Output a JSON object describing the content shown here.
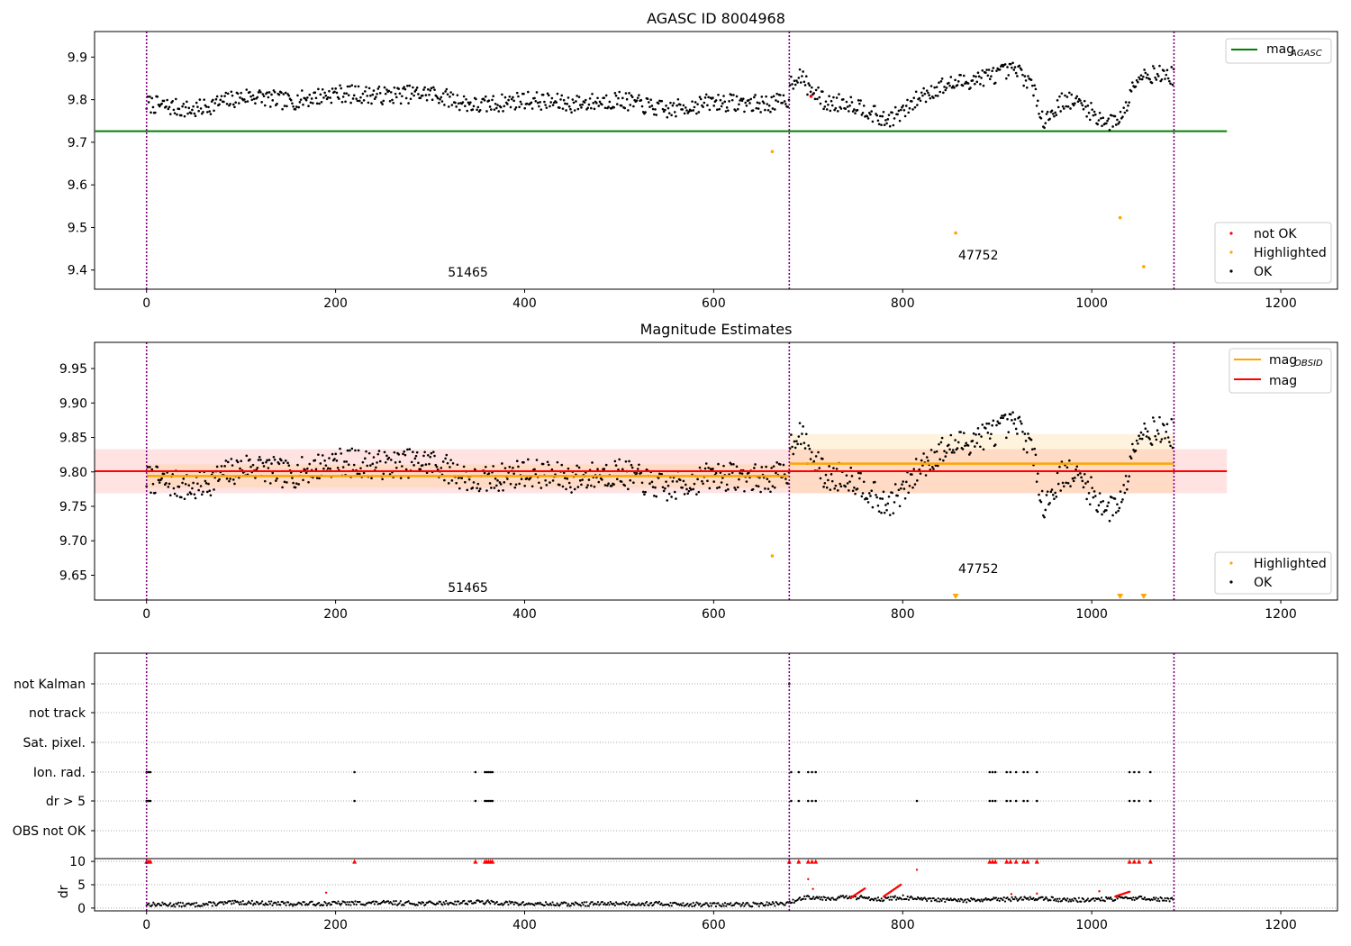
{
  "chart_data": [
    {
      "type": "scatter",
      "title": "AGASC ID 8004968",
      "xlim": [
        -55,
        1260
      ],
      "ylim": [
        9.355,
        9.96
      ],
      "x_ticks": [
        0,
        200,
        400,
        600,
        800,
        1000,
        1200
      ],
      "y_ticks": [
        9.4,
        9.5,
        9.6,
        9.7,
        9.8,
        9.9
      ],
      "y_tick_labels": [
        "9.4",
        "9.5",
        "9.6",
        "9.7",
        "9.8",
        "9.9"
      ],
      "vlines": [
        0,
        680,
        1087
      ],
      "hline": {
        "label": "mag",
        "label_sub": "AGASC",
        "y": 9.726,
        "x_range": [
          0,
          1143
        ],
        "color": "#008000"
      },
      "annotations": [
        {
          "text": "51465",
          "x": 340,
          "y": 9.385
        },
        {
          "text": "47752",
          "x": 880,
          "y": 9.425
        }
      ],
      "legend_upper": {
        "placement": "upper right",
        "entries": [
          {
            "label": "mag",
            "sub": "AGASC",
            "color": "#008000"
          }
        ]
      },
      "legend_lower": {
        "placement": "lower right",
        "entries": [
          {
            "label": "not OK",
            "color": "#ff0000"
          },
          {
            "label": "Highlighted",
            "color": "#ffa500"
          },
          {
            "label": "OK",
            "color": "#000000"
          }
        ]
      },
      "highlighted_points": [
        [
          662,
          9.678
        ],
        [
          856,
          9.487
        ],
        [
          1030,
          9.523
        ],
        [
          1055,
          9.408
        ]
      ],
      "not_ok_points": [
        [
          703,
          9.808
        ]
      ],
      "ok_trend": {
        "x": [
          0,
          20,
          50,
          80,
          110,
          150,
          200,
          250,
          300,
          350,
          400,
          450,
          500,
          550,
          600,
          650,
          678,
          682,
          690,
          700,
          720,
          740,
          760,
          780,
          800,
          820,
          840,
          860,
          880,
          900,
          920,
          935,
          950,
          970,
          990,
          1005,
          1020,
          1035,
          1045,
          1055,
          1070,
          1087
        ],
        "y": [
          9.79,
          9.785,
          9.775,
          9.795,
          9.81,
          9.795,
          9.815,
          9.81,
          9.815,
          9.785,
          9.8,
          9.79,
          9.8,
          9.775,
          9.795,
          9.79,
          9.795,
          9.84,
          9.86,
          9.83,
          9.79,
          9.795,
          9.78,
          9.75,
          9.77,
          9.81,
          9.83,
          9.84,
          9.85,
          9.86,
          9.87,
          9.84,
          9.75,
          9.8,
          9.79,
          9.76,
          9.745,
          9.77,
          9.85,
          9.86,
          9.86,
          9.855
        ]
      },
      "ok_scatter_amplitude": 0.03
    },
    {
      "type": "scatter",
      "title": "Magnitude Estimates",
      "xlim": [
        -55,
        1260
      ],
      "ylim": [
        9.614,
        9.988
      ],
      "x_ticks": [
        0,
        200,
        400,
        600,
        800,
        1000,
        1200
      ],
      "y_ticks": [
        9.65,
        9.7,
        9.75,
        9.8,
        9.85,
        9.9,
        9.95
      ],
      "y_tick_labels": [
        "9.65",
        "9.70",
        "9.75",
        "9.80",
        "9.85",
        "9.90",
        "9.95"
      ],
      "vlines": [
        0,
        680,
        1087
      ],
      "mag_line": {
        "label": "mag",
        "y": 9.801,
        "band": [
          9.769,
          9.833
        ],
        "x_range": [
          0,
          1143
        ],
        "color": "#ff0000"
      },
      "obsid_segments": [
        {
          "x_range": [
            0,
            680
          ],
          "y": 9.794,
          "band": [
            9.777,
            9.811
          ]
        },
        {
          "x_range": [
            680,
            1087
          ],
          "y": 9.812,
          "band": [
            9.769,
            9.855
          ]
        }
      ],
      "annotations": [
        {
          "text": "51465",
          "x": 340,
          "y": 9.626
        },
        {
          "text": "47752",
          "x": 880,
          "y": 9.653
        }
      ],
      "legend_upper": {
        "placement": "upper right",
        "entries": [
          {
            "label": "mag",
            "sub": "OBSID",
            "color": "#ffa500"
          },
          {
            "label": "mag",
            "color": "#ff0000"
          }
        ]
      },
      "legend_lower": {
        "placement": "lower right",
        "entries": [
          {
            "label": "Highlighted",
            "color": "#ffa500"
          },
          {
            "label": "OK",
            "color": "#000000"
          }
        ]
      },
      "highlighted_points": [
        [
          662,
          9.678
        ]
      ],
      "offscale_markers_x": [
        856,
        1030,
        1055
      ]
    },
    {
      "type": "scatter",
      "title": "",
      "xlim": [
        -55,
        1260
      ],
      "x_ticks": [
        0,
        200,
        400,
        600,
        800,
        1000,
        1200
      ],
      "vlines": [
        0,
        680,
        1087
      ],
      "flag_labels": [
        "not Kalman",
        "not track",
        "Sat. pixel.",
        "Ion. rad.",
        "dr > 5",
        "OBS not OK"
      ],
      "flag_points": {
        "not Kalman": [
          680
        ],
        "not track": [],
        "Sat. pixel.": [],
        "Ion. rad.": [
          0,
          2,
          4,
          220,
          348,
          358,
          360,
          362,
          364,
          366,
          682,
          690,
          700,
          704,
          708,
          892,
          895,
          898,
          910,
          914,
          920,
          928,
          932,
          942,
          1040,
          1045,
          1050,
          1062
        ],
        "dr > 5": [
          0,
          2,
          4,
          220,
          348,
          358,
          360,
          362,
          364,
          366,
          682,
          690,
          700,
          704,
          708,
          815,
          892,
          895,
          898,
          910,
          914,
          920,
          928,
          932,
          942,
          1040,
          1045,
          1050,
          1062
        ],
        "OBS not OK": []
      },
      "dr_ylabel": "dr",
      "dr_ylim": [
        -0.6,
        10.6
      ],
      "dr_ticks": [
        0,
        5,
        10
      ],
      "dr_clip_x": [
        0,
        2,
        4,
        220,
        348,
        358,
        360,
        362,
        364,
        366,
        680,
        690,
        700,
        704,
        708,
        892,
        895,
        898,
        910,
        914,
        920,
        928,
        932,
        942,
        1040,
        1045,
        1050,
        1062
      ],
      "dr_trend": {
        "x": [
          0,
          50,
          100,
          150,
          200,
          250,
          300,
          350,
          400,
          450,
          500,
          550,
          600,
          650,
          680,
          690,
          700,
          720,
          740,
          760,
          780,
          800,
          820,
          860,
          900,
          940,
          980,
          1020,
          1040,
          1060,
          1087
        ],
        "y": [
          0.8,
          0.7,
          1.2,
          0.9,
          1.0,
          1.1,
          1.0,
          1.3,
          0.9,
          0.8,
          1.0,
          0.9,
          0.7,
          0.8,
          1.0,
          2.0,
          2.4,
          2.1,
          2.3,
          2.2,
          1.9,
          2.3,
          1.8,
          1.6,
          1.8,
          2.1,
          1.7,
          1.9,
          2.2,
          2.0,
          1.8
        ]
      }
    }
  ]
}
